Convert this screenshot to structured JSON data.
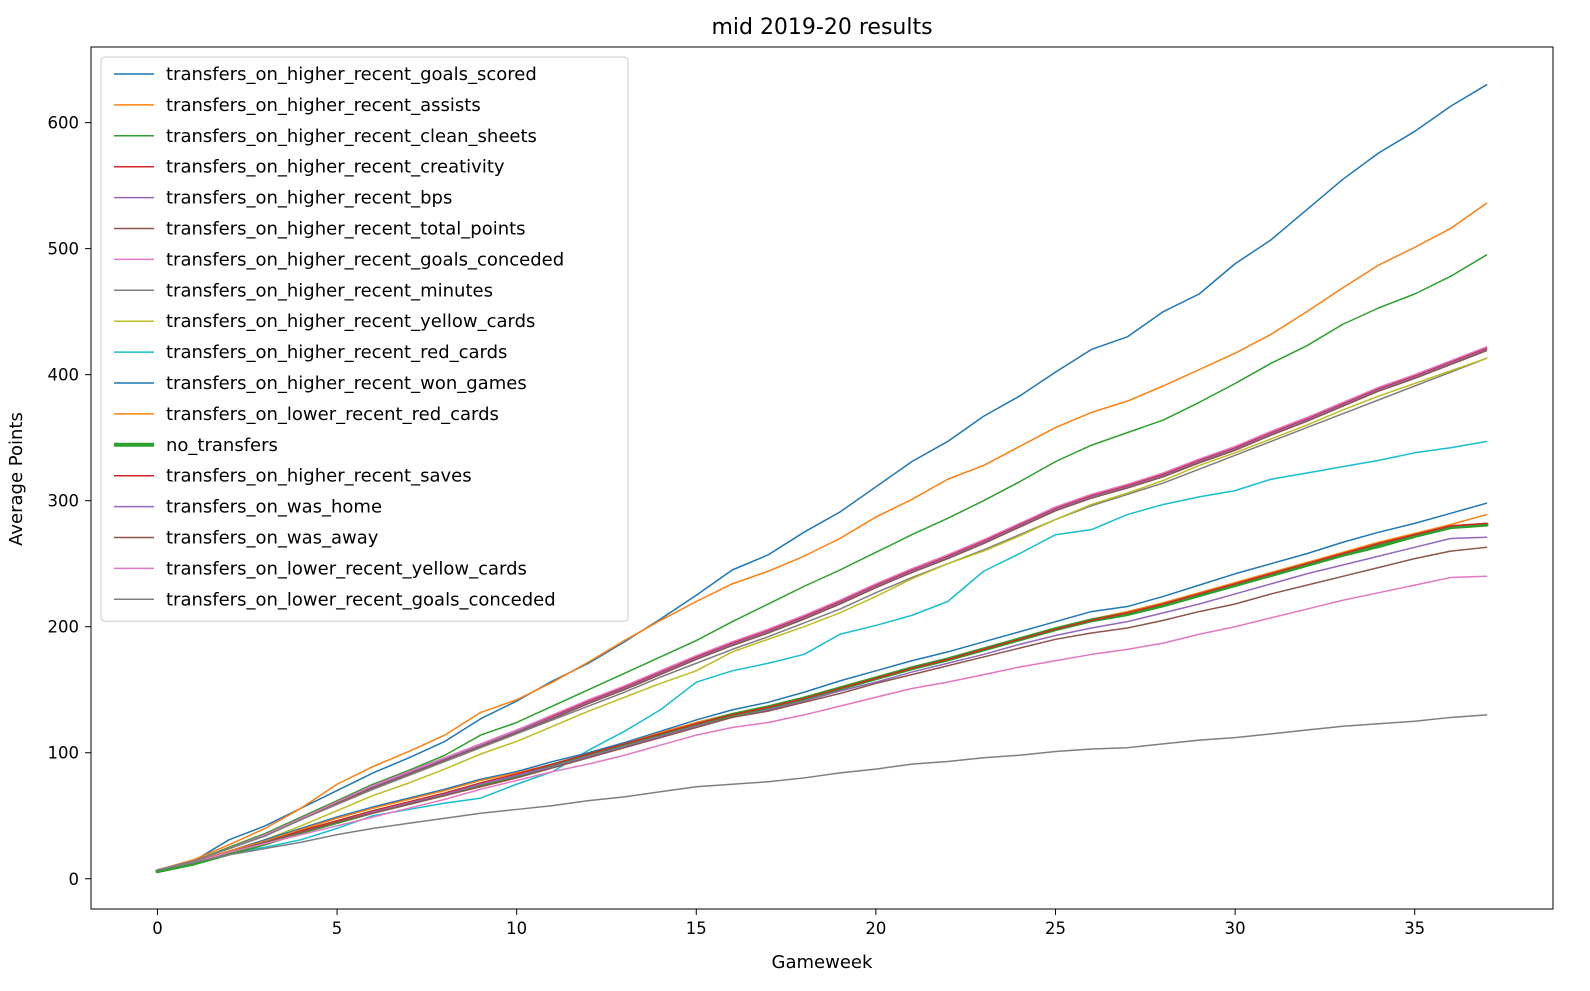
{
  "chart_data": {
    "type": "line",
    "title": "mid 2019-20 results",
    "xlabel": "Gameweek",
    "ylabel": "Average Points",
    "xlim": [
      -1.85,
      38.85
    ],
    "ylim": [
      -24,
      660
    ],
    "xticks": [
      0,
      5,
      10,
      15,
      20,
      25,
      30,
      35
    ],
    "yticks": [
      0,
      100,
      200,
      300,
      400,
      500,
      600
    ],
    "grid": false,
    "legend_position": "upper-left",
    "series": [
      {
        "name": "transfers_on_higher_recent_goals_scored",
        "color": "#1f77b4",
        "width": 1.5,
        "values": [
          7,
          14,
          31,
          42,
          56,
          70,
          84,
          96,
          109,
          127,
          141,
          157,
          171,
          188,
          206,
          225,
          245,
          257,
          275,
          291,
          311,
          331,
          347,
          367,
          383,
          402,
          420,
          430,
          450,
          464,
          488,
          507,
          531,
          555,
          576,
          593,
          613,
          630
        ]
      },
      {
        "name": "transfers_on_higher_recent_assists",
        "color": "#ff7f0e",
        "width": 1.5,
        "values": [
          7,
          15,
          27,
          40,
          56,
          75,
          89,
          101,
          114,
          132,
          142,
          156,
          172,
          189,
          205,
          220,
          234,
          244,
          256,
          270,
          287,
          301,
          317,
          328,
          343,
          358,
          370,
          379,
          391,
          404,
          417,
          432,
          450,
          469,
          487,
          501,
          516,
          536
        ]
      },
      {
        "name": "transfers_on_higher_recent_clean_sheets",
        "color": "#2ca02c",
        "width": 1.5,
        "values": [
          7,
          14,
          25,
          36,
          49,
          62,
          75,
          86,
          98,
          114,
          124,
          137,
          150,
          163,
          176,
          189,
          204,
          218,
          232,
          245,
          259,
          273,
          286,
          300,
          315,
          331,
          344,
          354,
          364,
          378,
          393,
          409,
          423,
          440,
          453,
          464,
          478,
          495
        ]
      },
      {
        "name": "transfers_on_higher_recent_creativity",
        "color": "#d62728",
        "width": 1.5,
        "values": [
          7,
          14,
          24,
          35,
          48,
          61,
          74,
          85,
          96,
          107,
          118,
          129,
          141,
          152,
          164,
          176,
          187,
          197,
          208,
          220,
          233,
          245,
          256,
          268,
          281,
          294,
          304,
          312,
          321,
          332,
          342,
          354,
          365,
          377,
          389,
          399,
          410,
          421
        ]
      },
      {
        "name": "transfers_on_higher_recent_bps",
        "color": "#9467bd",
        "width": 1.5,
        "values": [
          7,
          14,
          24,
          35,
          47,
          60,
          73,
          84,
          95,
          106,
          117,
          128,
          140,
          151,
          163,
          175,
          186,
          196,
          207,
          219,
          232,
          244,
          255,
          267,
          280,
          293,
          303,
          311,
          320,
          331,
          341,
          353,
          364,
          376,
          388,
          398,
          409,
          420
        ]
      },
      {
        "name": "transfers_on_higher_recent_total_points",
        "color": "#8c564b",
        "width": 1.5,
        "values": [
          7,
          14,
          24,
          34,
          47,
          60,
          72,
          83,
          94,
          105,
          116,
          127,
          139,
          150,
          162,
          174,
          185,
          195,
          206,
          218,
          231,
          243,
          254,
          266,
          279,
          292,
          302,
          310,
          319,
          330,
          340,
          352,
          363,
          375,
          387,
          397,
          408,
          419
        ]
      },
      {
        "name": "transfers_on_higher_recent_goals_conceded",
        "color": "#e377c2",
        "width": 1.5,
        "values": [
          7,
          14,
          24,
          35,
          48,
          61,
          74,
          85,
          96,
          107,
          118,
          130,
          142,
          153,
          165,
          177,
          188,
          198,
          209,
          221,
          234,
          246,
          257,
          269,
          282,
          295,
          305,
          313,
          322,
          333,
          343,
          355,
          366,
          378,
          390,
          400,
          411,
          422
        ]
      },
      {
        "name": "transfers_on_higher_recent_minutes",
        "color": "#7f7f7f",
        "width": 1.5,
        "values": [
          7,
          14,
          24,
          34,
          47,
          59,
          71,
          82,
          93,
          104,
          115,
          126,
          137,
          148,
          160,
          171,
          182,
          192,
          203,
          214,
          227,
          239,
          250,
          261,
          273,
          285,
          296,
          305,
          314,
          325,
          336,
          347,
          358,
          369,
          380,
          391,
          402,
          413
        ]
      },
      {
        "name": "transfers_on_higher_recent_yellow_cards",
        "color": "#bcbd22",
        "width": 1.5,
        "values": [
          7,
          13,
          22,
          31,
          42,
          54,
          66,
          76,
          87,
          99,
          109,
          121,
          133,
          144,
          155,
          165,
          180,
          190,
          200,
          211,
          224,
          238,
          250,
          260,
          272,
          285,
          297,
          306,
          316,
          328,
          338,
          349,
          360,
          372,
          383,
          393,
          403,
          413
        ]
      },
      {
        "name": "transfers_on_higher_recent_red_cards",
        "color": "#17becf",
        "width": 1.5,
        "values": [
          7,
          12,
          20,
          25,
          31,
          40,
          50,
          55,
          60,
          64,
          75,
          85,
          102,
          117,
          134,
          156,
          165,
          171,
          178,
          194,
          201,
          209,
          220,
          244,
          258,
          273,
          277,
          289,
          297,
          303,
          308,
          317,
          322,
          327,
          332,
          338,
          342,
          347
        ]
      },
      {
        "name": "transfers_on_higher_recent_won_games",
        "color": "#1f77b4",
        "width": 1.5,
        "values": [
          7,
          13,
          22,
          31,
          40,
          49,
          57,
          64,
          71,
          79,
          85,
          93,
          100,
          108,
          117,
          126,
          134,
          140,
          148,
          157,
          165,
          173,
          180,
          188,
          196,
          204,
          212,
          216,
          224,
          233,
          242,
          250,
          258,
          267,
          275,
          282,
          290,
          298
        ]
      },
      {
        "name": "transfers_on_lower_recent_red_cards",
        "color": "#ff7f0e",
        "width": 1.5,
        "values": [
          7,
          13,
          22,
          30,
          39,
          48,
          56,
          63,
          70,
          78,
          84,
          91,
          99,
          107,
          116,
          124,
          131,
          137,
          144,
          152,
          160,
          168,
          175,
          183,
          191,
          199,
          206,
          212,
          219,
          227,
          235,
          243,
          251,
          259,
          267,
          274,
          281,
          289
        ]
      },
      {
        "name": "no_transfers",
        "color": "#2ca02c",
        "width": 4,
        "values": [
          6,
          12,
          20,
          28,
          37,
          45,
          53,
          60,
          67,
          75,
          82,
          90,
          98,
          106,
          114,
          122,
          130,
          136,
          143,
          151,
          159,
          167,
          174,
          182,
          190,
          198,
          205,
          210,
          217,
          225,
          233,
          241,
          249,
          257,
          264,
          272,
          279,
          281
        ]
      },
      {
        "name": "transfers_on_higher_recent_saves",
        "color": "#d62728",
        "width": 1.5,
        "values": [
          7,
          13,
          21,
          29,
          38,
          46,
          54,
          61,
          68,
          76,
          83,
          91,
          99,
          107,
          115,
          123,
          130,
          136,
          143,
          151,
          159,
          167,
          174,
          182,
          190,
          198,
          205,
          211,
          218,
          226,
          234,
          242,
          250,
          258,
          266,
          273,
          280,
          282
        ]
      },
      {
        "name": "transfers_on_was_home",
        "color": "#9467bd",
        "width": 1.5,
        "values": [
          7,
          13,
          21,
          29,
          37,
          45,
          53,
          60,
          67,
          75,
          82,
          89,
          97,
          105,
          113,
          121,
          128,
          134,
          141,
          149,
          156,
          164,
          171,
          178,
          186,
          193,
          199,
          204,
          211,
          218,
          226,
          234,
          242,
          249,
          256,
          263,
          270,
          271
        ]
      },
      {
        "name": "transfers_on_was_away",
        "color": "#8c564b",
        "width": 1.5,
        "values": [
          7,
          13,
          21,
          29,
          37,
          45,
          52,
          59,
          66,
          73,
          80,
          88,
          96,
          104,
          112,
          120,
          128,
          133,
          140,
          147,
          155,
          162,
          169,
          176,
          183,
          190,
          195,
          199,
          205,
          212,
          218,
          226,
          233,
          240,
          247,
          254,
          260,
          263
        ]
      },
      {
        "name": "transfers_on_lower_recent_yellow_cards",
        "color": "#e377c2",
        "width": 1.5,
        "values": [
          7,
          13,
          21,
          28,
          35,
          42,
          49,
          56,
          63,
          71,
          78,
          85,
          91,
          98,
          106,
          114,
          120,
          124,
          130,
          137,
          144,
          151,
          156,
          162,
          168,
          173,
          178,
          182,
          187,
          194,
          200,
          207,
          214,
          221,
          227,
          233,
          239,
          240
        ]
      },
      {
        "name": "transfers_on_lower_recent_goals_conceded",
        "color": "#7f7f7f",
        "width": 1.5,
        "values": [
          7,
          13,
          19,
          24,
          29,
          35,
          40,
          44,
          48,
          52,
          55,
          58,
          62,
          65,
          69,
          73,
          75,
          77,
          80,
          84,
          87,
          91,
          93,
          96,
          98,
          101,
          103,
          104,
          107,
          110,
          112,
          115,
          118,
          121,
          123,
          125,
          128,
          130
        ]
      }
    ]
  }
}
